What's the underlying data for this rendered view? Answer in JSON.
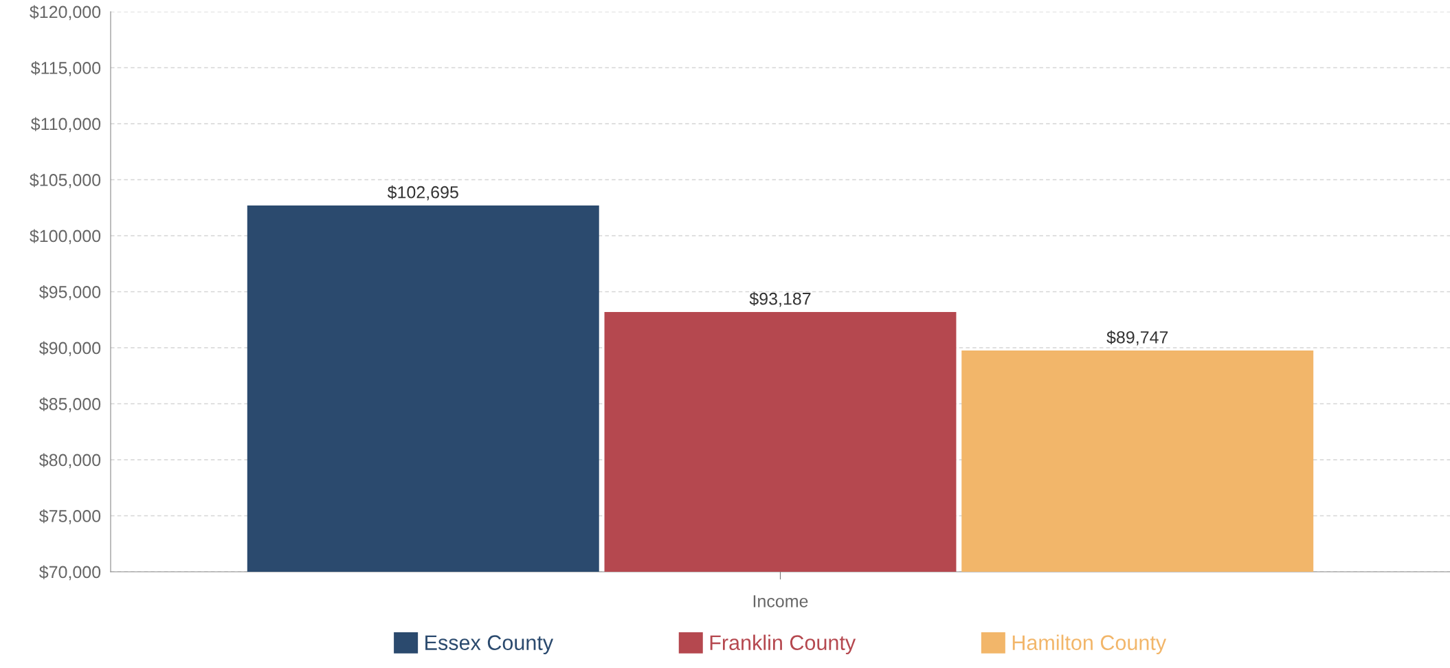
{
  "chart_data": {
    "type": "bar",
    "categories": [
      "Income"
    ],
    "series": [
      {
        "name": "Essex County",
        "color": "#2b4a6e",
        "values": [
          102695
        ],
        "value_labels": [
          "$102,695"
        ]
      },
      {
        "name": "Franklin County",
        "color": "#b5484f",
        "values": [
          93187
        ],
        "value_labels": [
          "$93,187"
        ]
      },
      {
        "name": "Hamilton County",
        "color": "#f2b66a",
        "values": [
          89747
        ],
        "value_labels": [
          "$89,747"
        ]
      }
    ],
    "ylim": [
      70000,
      120000
    ],
    "yticks": [
      {
        "value": 70000,
        "label": "$70,000"
      },
      {
        "value": 75000,
        "label": "$75,000"
      },
      {
        "value": 80000,
        "label": "$80,000"
      },
      {
        "value": 85000,
        "label": "$85,000"
      },
      {
        "value": 90000,
        "label": "$90,000"
      },
      {
        "value": 95000,
        "label": "$95,000"
      },
      {
        "value": 100000,
        "label": "$100,000"
      },
      {
        "value": 105000,
        "label": "$105,000"
      },
      {
        "value": 110000,
        "label": "$110,000"
      },
      {
        "value": 115000,
        "label": "$115,000"
      },
      {
        "value": 120000,
        "label": "$120,000"
      }
    ],
    "grid": "y",
    "legend": "bottom"
  }
}
